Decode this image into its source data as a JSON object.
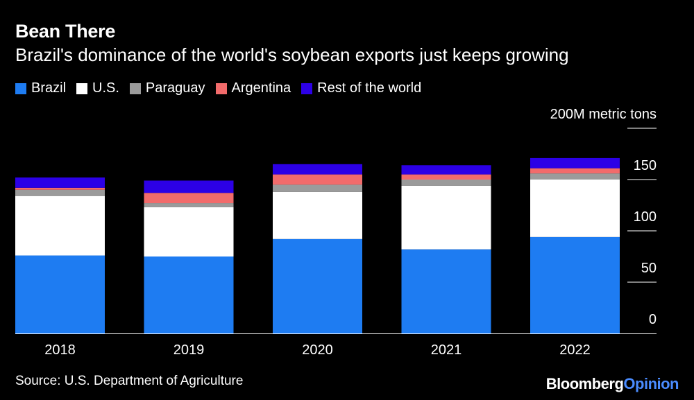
{
  "header": {
    "title": "Bean There",
    "subtitle": "Brazil's dominance of the world's soybean exports just keeps growing"
  },
  "legend": [
    {
      "label": "Brazil",
      "color": "#1e7cf2"
    },
    {
      "label": "U.S.",
      "color": "#ffffff"
    },
    {
      "label": "Paraguay",
      "color": "#9b9b9b"
    },
    {
      "label": "Argentina",
      "color": "#f26b6b"
    },
    {
      "label": "Rest of the world",
      "color": "#2c00e6"
    }
  ],
  "footer": {
    "source": "Source: U.S. Department of Agriculture",
    "brand_primary": "Bloomberg",
    "brand_secondary": "Opinion"
  },
  "chart_data": {
    "type": "bar",
    "stacked": true,
    "title": "Bean There",
    "subtitle": "Brazil's dominance of the world's soybean exports just keeps growing",
    "unit_label": "200M metric tons",
    "categories": [
      "2018",
      "2019",
      "2020",
      "2021",
      "2022"
    ],
    "series": [
      {
        "name": "Brazil",
        "color": "#1e7cf2",
        "values": [
          76,
          75,
          92,
          82,
          94
        ]
      },
      {
        "name": "U.S.",
        "color": "#ffffff",
        "values": [
          58,
          48,
          46,
          62,
          56
        ]
      },
      {
        "name": "Paraguay",
        "color": "#9b9b9b",
        "values": [
          6,
          4,
          7,
          6,
          6
        ]
      },
      {
        "name": "Argentina",
        "color": "#f26b6b",
        "values": [
          2,
          10,
          10,
          5,
          5
        ]
      },
      {
        "name": "Rest of the world",
        "color": "#2c00e6",
        "values": [
          10,
          12,
          10,
          9,
          10
        ]
      }
    ],
    "yticks": [
      0,
      50,
      100,
      150,
      200
    ],
    "ytick_labels": [
      "0",
      "50",
      "100",
      "150",
      "200M metric tons"
    ],
    "ylim": [
      0,
      200
    ],
    "y_axis_position": "right",
    "grid": false
  }
}
